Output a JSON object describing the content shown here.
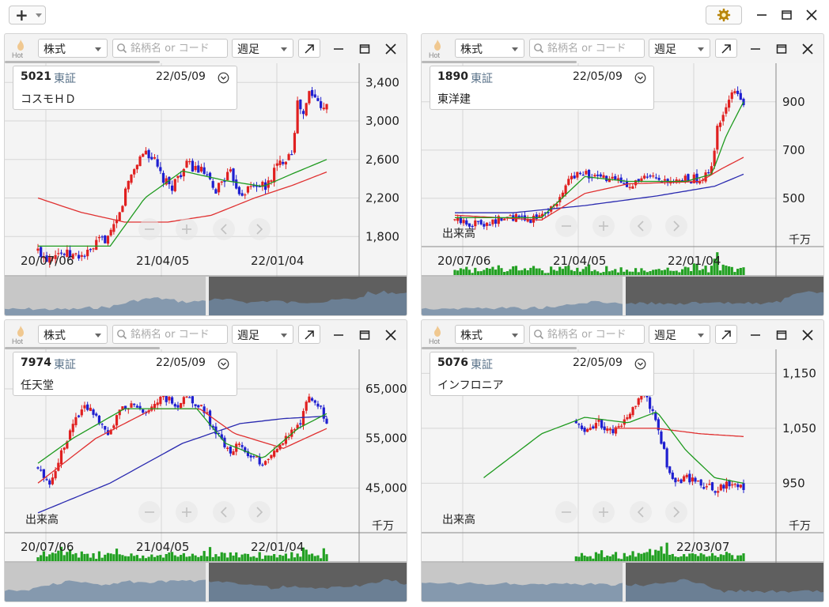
{
  "toolbar": {
    "add_icon": "plus-icon",
    "settings_icon": "gear-icon",
    "window_controls": [
      "minimize-icon",
      "maximize-icon",
      "close-icon"
    ]
  },
  "colors": {
    "up_candle": "#e02020",
    "down_candle": "#1f1fd0",
    "ma_short": "#1e9a1e",
    "ma_mid": "#e03030",
    "ma_long": "#2a2ab0",
    "volume": "#22a022",
    "overview_fill": "#6f8aa6"
  },
  "panels": [
    {
      "hot_label": "Hot",
      "market_select": "株式",
      "search_placeholder": "銘柄名 or コード",
      "period_select": "週足",
      "info": {
        "code": "5021",
        "market": "東証",
        "date": "22/05/09",
        "name": "コスモＨＤ"
      },
      "y_ticks": [
        "3,400",
        "3,000",
        "2,600",
        "2,200",
        "1,800"
      ],
      "x_ticks": [
        "20/07/06",
        "21/04/05",
        "22/01/04"
      ],
      "volume_label": "",
      "unit_label": "",
      "chart_data": {
        "type": "candlestick",
        "y_ticks": [
          3400,
          3000,
          2600,
          2200,
          1800
        ],
        "ylim": [
          1400,
          3550
        ],
        "close_path": [
          [
            0.0,
            1650
          ],
          [
            0.03,
            1580
          ],
          [
            0.06,
            1650
          ],
          [
            0.09,
            1620
          ],
          [
            0.12,
            1600
          ],
          [
            0.15,
            1600
          ],
          [
            0.18,
            1630
          ],
          [
            0.21,
            1750
          ],
          [
            0.25,
            1800
          ],
          [
            0.28,
            2000
          ],
          [
            0.31,
            2350
          ],
          [
            0.34,
            2550
          ],
          [
            0.37,
            2700
          ],
          [
            0.4,
            2600
          ],
          [
            0.43,
            2400
          ],
          [
            0.46,
            2300
          ],
          [
            0.49,
            2450
          ],
          [
            0.52,
            2550
          ],
          [
            0.55,
            2500
          ],
          [
            0.58,
            2450
          ],
          [
            0.61,
            2250
          ],
          [
            0.64,
            2400
          ],
          [
            0.67,
            2450
          ],
          [
            0.7,
            2250
          ],
          [
            0.73,
            2300
          ],
          [
            0.76,
            2350
          ],
          [
            0.79,
            2300
          ],
          [
            0.82,
            2500
          ],
          [
            0.85,
            2600
          ],
          [
            0.88,
            2700
          ],
          [
            0.9,
            3200
          ],
          [
            0.92,
            3050
          ],
          [
            0.94,
            3300
          ],
          [
            0.97,
            3200
          ],
          [
            1.0,
            3150
          ]
        ],
        "ma_short": [
          [
            0.0,
            1700
          ],
          [
            0.25,
            1700
          ],
          [
            0.37,
            2200
          ],
          [
            0.5,
            2480
          ],
          [
            0.65,
            2380
          ],
          [
            0.78,
            2320
          ],
          [
            0.88,
            2450
          ],
          [
            1.0,
            2600
          ]
        ],
        "ma_mid": [
          [
            0.0,
            2200
          ],
          [
            0.15,
            2050
          ],
          [
            0.3,
            1950
          ],
          [
            0.45,
            1950
          ],
          [
            0.6,
            2020
          ],
          [
            0.75,
            2200
          ],
          [
            0.88,
            2330
          ],
          [
            1.0,
            2470
          ]
        ],
        "show_volume": false
      }
    },
    {
      "hot_label": "Hot",
      "market_select": "株式",
      "search_placeholder": "銘柄名 or コード",
      "period_select": "週足",
      "info": {
        "code": "1890",
        "market": "東証",
        "date": "22/05/09",
        "name": "東洋建"
      },
      "y_ticks": [
        "900",
        "700",
        "500"
      ],
      "x_ticks": [
        "20/07/06",
        "21/04/05",
        "22/01/04"
      ],
      "volume_label": "出来高",
      "unit_label": "千万",
      "chart_data": {
        "type": "candlestick",
        "y_ticks": [
          900,
          700,
          500
        ],
        "ylim": [
          300,
          1040
        ],
        "close_path": [
          [
            0.0,
            410
          ],
          [
            0.05,
            395
          ],
          [
            0.1,
            400
          ],
          [
            0.15,
            410
          ],
          [
            0.2,
            420
          ],
          [
            0.25,
            410
          ],
          [
            0.3,
            430
          ],
          [
            0.35,
            480
          ],
          [
            0.4,
            580
          ],
          [
            0.43,
            620
          ],
          [
            0.47,
            590
          ],
          [
            0.52,
            580
          ],
          [
            0.57,
            570
          ],
          [
            0.62,
            560
          ],
          [
            0.67,
            585
          ],
          [
            0.72,
            560
          ],
          [
            0.77,
            570
          ],
          [
            0.82,
            580
          ],
          [
            0.86,
            580
          ],
          [
            0.89,
            620
          ],
          [
            0.91,
            800
          ],
          [
            0.93,
            860
          ],
          [
            0.95,
            900
          ],
          [
            0.97,
            950
          ],
          [
            1.0,
            900
          ]
        ],
        "ma_short": [
          [
            0.0,
            420
          ],
          [
            0.3,
            420
          ],
          [
            0.45,
            590
          ],
          [
            0.6,
            570
          ],
          [
            0.8,
            570
          ],
          [
            0.89,
            600
          ],
          [
            0.94,
            760
          ],
          [
            1.0,
            900
          ]
        ],
        "ma_mid": [
          [
            0.0,
            430
          ],
          [
            0.3,
            410
          ],
          [
            0.45,
            520
          ],
          [
            0.6,
            560
          ],
          [
            0.85,
            570
          ],
          [
            0.92,
            620
          ],
          [
            1.0,
            670
          ]
        ],
        "ma_long": [
          [
            0.0,
            440
          ],
          [
            0.2,
            440
          ],
          [
            0.45,
            470
          ],
          [
            0.7,
            510
          ],
          [
            0.9,
            550
          ],
          [
            1.0,
            600
          ]
        ],
        "show_volume": true
      }
    },
    {
      "hot_label": "Hot",
      "market_select": "株式",
      "search_placeholder": "銘柄名 or コード",
      "period_select": "週足",
      "info": {
        "code": "7974",
        "market": "東証",
        "date": "22/05/09",
        "name": "任天堂"
      },
      "y_ticks": [
        "65,000",
        "55,000",
        "45,000"
      ],
      "x_ticks": [
        "20/07/06",
        "21/04/05",
        "22/01/04"
      ],
      "volume_label": "出来高",
      "unit_label": "千万",
      "chart_data": {
        "type": "candlestick",
        "y_ticks": [
          65000,
          55000,
          45000
        ],
        "ylim": [
          36000,
          72000
        ],
        "close_path": [
          [
            0.0,
            49000
          ],
          [
            0.04,
            46000
          ],
          [
            0.08,
            52000
          ],
          [
            0.12,
            58000
          ],
          [
            0.16,
            62000
          ],
          [
            0.2,
            60000
          ],
          [
            0.24,
            56000
          ],
          [
            0.28,
            60000
          ],
          [
            0.32,
            62000
          ],
          [
            0.36,
            60000
          ],
          [
            0.4,
            62000
          ],
          [
            0.44,
            63000
          ],
          [
            0.48,
            62000
          ],
          [
            0.52,
            63000
          ],
          [
            0.56,
            62000
          ],
          [
            0.6,
            58000
          ],
          [
            0.63,
            55000
          ],
          [
            0.66,
            52000
          ],
          [
            0.7,
            54000
          ],
          [
            0.74,
            51000
          ],
          [
            0.78,
            50000
          ],
          [
            0.82,
            53000
          ],
          [
            0.86,
            55000
          ],
          [
            0.9,
            57000
          ],
          [
            0.94,
            64000
          ],
          [
            0.97,
            62000
          ],
          [
            1.0,
            58000
          ]
        ],
        "ma_short": [
          [
            0.0,
            50000
          ],
          [
            0.12,
            55000
          ],
          [
            0.3,
            61000
          ],
          [
            0.55,
            61000
          ],
          [
            0.65,
            54000
          ],
          [
            0.78,
            51000
          ],
          [
            0.9,
            57000
          ],
          [
            1.0,
            60000
          ]
        ],
        "ma_mid": [
          [
            0.0,
            46000
          ],
          [
            0.2,
            55000
          ],
          [
            0.4,
            61000
          ],
          [
            0.56,
            61000
          ],
          [
            0.68,
            56000
          ],
          [
            0.85,
            53000
          ],
          [
            1.0,
            57000
          ]
        ],
        "ma_long": [
          [
            0.0,
            40000
          ],
          [
            0.25,
            46000
          ],
          [
            0.5,
            54000
          ],
          [
            0.7,
            58000
          ],
          [
            0.85,
            59000
          ],
          [
            1.0,
            59500
          ]
        ],
        "show_volume": true
      }
    },
    {
      "hot_label": "Hot",
      "market_select": "株式",
      "search_placeholder": "銘柄名 or コード",
      "period_select": "週足",
      "info": {
        "code": "5076",
        "market": "東証",
        "date": "22/05/09",
        "name": "インフロニア"
      },
      "y_ticks": [
        "1,150",
        "1,050",
        "950"
      ],
      "x_ticks": [
        "22/03/07"
      ],
      "volume_label": "出来高",
      "unit_label": "千万",
      "chart_data": {
        "type": "candlestick",
        "y_ticks": [
          1150,
          1050,
          950
        ],
        "ylim": [
          860,
          1185
        ],
        "close_path": [
          [
            0.0,
            940
          ],
          [
            0.05,
            960
          ],
          [
            0.1,
            950
          ],
          [
            0.15,
            980
          ],
          [
            0.2,
            1000
          ],
          [
            0.25,
            1030
          ],
          [
            0.3,
            1060
          ],
          [
            0.35,
            1080
          ],
          [
            0.4,
            1070
          ],
          [
            0.45,
            1050
          ],
          [
            0.5,
            1060
          ],
          [
            0.55,
            1040
          ],
          [
            0.6,
            1070
          ],
          [
            0.65,
            1120
          ],
          [
            0.7,
            1060
          ],
          [
            0.75,
            950
          ],
          [
            0.8,
            960
          ],
          [
            0.85,
            950
          ],
          [
            0.9,
            940
          ],
          [
            0.95,
            950
          ],
          [
            1.0,
            945
          ]
        ],
        "ma_short": [
          [
            0.1,
            960
          ],
          [
            0.3,
            1040
          ],
          [
            0.45,
            1070
          ],
          [
            0.6,
            1060
          ],
          [
            0.7,
            1080
          ],
          [
            0.8,
            1010
          ],
          [
            0.9,
            960
          ],
          [
            1.0,
            950
          ]
        ],
        "ma_mid": [
          [
            0.55,
            1050
          ],
          [
            0.7,
            1050
          ],
          [
            0.85,
            1040
          ],
          [
            1.0,
            1035
          ]
        ],
        "first_x": 0.42,
        "show_volume": true
      }
    }
  ]
}
